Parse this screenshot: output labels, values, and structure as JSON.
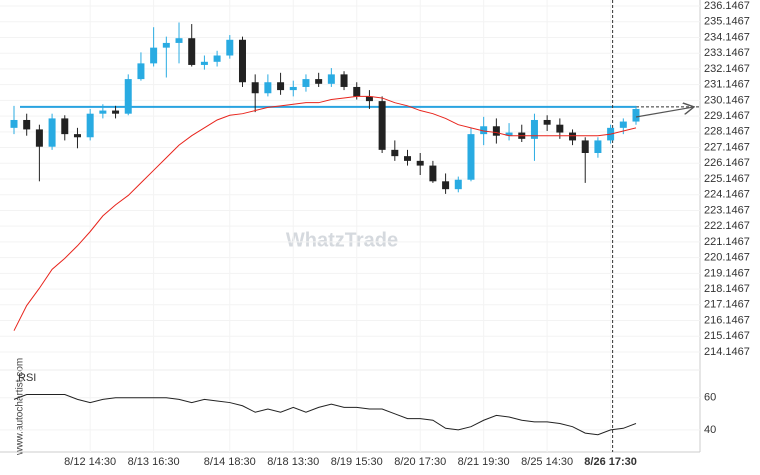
{
  "chart_data": {
    "type": "candlestick",
    "watermark": "WhatzTrade",
    "side_text": "www.autochartist.com",
    "categories": [
      null,
      null,
      null,
      null,
      null,
      null,
      "8/12 14:30",
      null,
      null,
      null,
      null,
      "8/13 16:30",
      null,
      null,
      null,
      null,
      null,
      "8/14 18:30",
      null,
      null,
      null,
      null,
      "8/18 13:30",
      null,
      null,
      null,
      null,
      "8/19 15:30",
      null,
      null,
      null,
      null,
      "8/20 17:30",
      null,
      null,
      null,
      null,
      "8/21 19:30",
      null,
      null,
      null,
      null,
      "8/25 14:30",
      null,
      null,
      null,
      null,
      "8/26 17:30",
      null,
      null
    ],
    "open": [
      228.4,
      228.9,
      228.3,
      227.2,
      229.0,
      228.0,
      227.8,
      229.3,
      229.5,
      229.3,
      231.5,
      232.5,
      233.5,
      233.8,
      234.1,
      232.4,
      232.6,
      233.0,
      234.0,
      231.3,
      230.6,
      231.3,
      230.8,
      231.0,
      231.5,
      231.2,
      231.8,
      231.0,
      230.4,
      230.1,
      227.0,
      226.6,
      226.3,
      226.0,
      225.0,
      224.5,
      225.1,
      228.0,
      228.5,
      227.9,
      228.1,
      227.7,
      228.9,
      228.6,
      228.1,
      227.6,
      226.8,
      227.6,
      228.4,
      228.8
    ],
    "high": [
      229.8,
      229.3,
      228.6,
      229.3,
      229.2,
      228.4,
      229.6,
      229.9,
      229.8,
      231.8,
      233.2,
      234.8,
      234.2,
      235.1,
      235.0,
      233.0,
      233.3,
      234.3,
      234.2,
      231.8,
      231.8,
      231.9,
      231.4,
      231.8,
      231.9,
      232.2,
      232.0,
      231.3,
      230.8,
      230.4,
      227.6,
      227.0,
      226.8,
      226.3,
      225.5,
      225.3,
      228.4,
      229.1,
      229.0,
      228.7,
      228.6,
      229.3,
      229.2,
      229.0,
      228.3,
      227.8,
      227.8,
      228.6,
      229.0,
      229.8
    ],
    "low": [
      228.0,
      227.9,
      225.0,
      227.0,
      227.6,
      227.1,
      227.6,
      229.0,
      229.0,
      229.2,
      231.4,
      232.3,
      231.6,
      232.5,
      232.3,
      232.1,
      232.3,
      232.8,
      231.0,
      229.4,
      230.4,
      230.5,
      230.4,
      230.7,
      231.0,
      231.0,
      230.8,
      230.2,
      229.6,
      226.8,
      226.3,
      226.0,
      225.4,
      224.9,
      224.2,
      224.3,
      225.0,
      227.3,
      227.4,
      227.6,
      227.5,
      226.3,
      228.2,
      227.7,
      227.3,
      224.9,
      226.5,
      227.4,
      228.0,
      228.6
    ],
    "close": [
      228.9,
      228.3,
      227.2,
      229.0,
      228.0,
      227.8,
      229.3,
      229.5,
      229.3,
      231.5,
      232.5,
      233.5,
      233.8,
      234.1,
      232.4,
      232.6,
      233.0,
      234.0,
      231.3,
      230.6,
      231.3,
      230.8,
      231.0,
      231.5,
      231.2,
      231.8,
      231.0,
      230.4,
      230.1,
      227.0,
      226.6,
      226.3,
      226.0,
      225.0,
      224.5,
      225.1,
      228.0,
      228.5,
      227.9,
      228.1,
      227.7,
      228.9,
      228.6,
      228.1,
      227.6,
      226.8,
      227.6,
      228.4,
      228.8,
      229.6
    ],
    "up_color": "#29abe2",
    "down_color": "#222222",
    "moving_average": {
      "color": "#e8241c",
      "values": [
        215.5,
        217.1,
        218.2,
        219.4,
        220.1,
        220.9,
        221.8,
        222.8,
        223.5,
        224.1,
        224.9,
        225.7,
        226.5,
        227.3,
        227.9,
        228.4,
        228.9,
        229.2,
        229.3,
        229.5,
        229.7,
        229.8,
        229.9,
        230.0,
        230.0,
        230.2,
        230.3,
        230.4,
        230.4,
        230.3,
        230.0,
        229.8,
        229.5,
        229.3,
        229.0,
        228.6,
        228.4,
        228.2,
        228.1,
        227.9,
        227.9,
        227.9,
        227.9,
        227.9,
        227.9,
        227.9,
        227.9,
        228.0,
        228.2,
        228.4
      ]
    },
    "level": {
      "value": 229.73,
      "color": "#29a3e0"
    },
    "ylim": [
      213.0,
      236.53
    ],
    "yticks": [
      214.1467,
      215.1467,
      216.1467,
      217.1467,
      218.1467,
      219.1467,
      220.1467,
      221.1467,
      222.1467,
      223.1467,
      224.1467,
      225.1467,
      226.1467,
      227.1467,
      228.1467,
      229.1467,
      230.1467,
      231.1467,
      232.1467,
      233.1467,
      234.1467,
      235.1467,
      236.1467
    ],
    "grid": true,
    "rsi": {
      "label": "RSI",
      "color": "#222222",
      "ylim": [
        30,
        76
      ],
      "yticks": [
        40,
        60
      ],
      "values": [
        59,
        62,
        62,
        62,
        62,
        59,
        57,
        59,
        60,
        60,
        60,
        60,
        60,
        59,
        57,
        59,
        58,
        57,
        55,
        51,
        53,
        51,
        54,
        51,
        54,
        56,
        54,
        54,
        53,
        53,
        50,
        47,
        47,
        46,
        41,
        40,
        42,
        46,
        49,
        48,
        46,
        45,
        45,
        44,
        42,
        38,
        37,
        40,
        41,
        44
      ]
    }
  }
}
